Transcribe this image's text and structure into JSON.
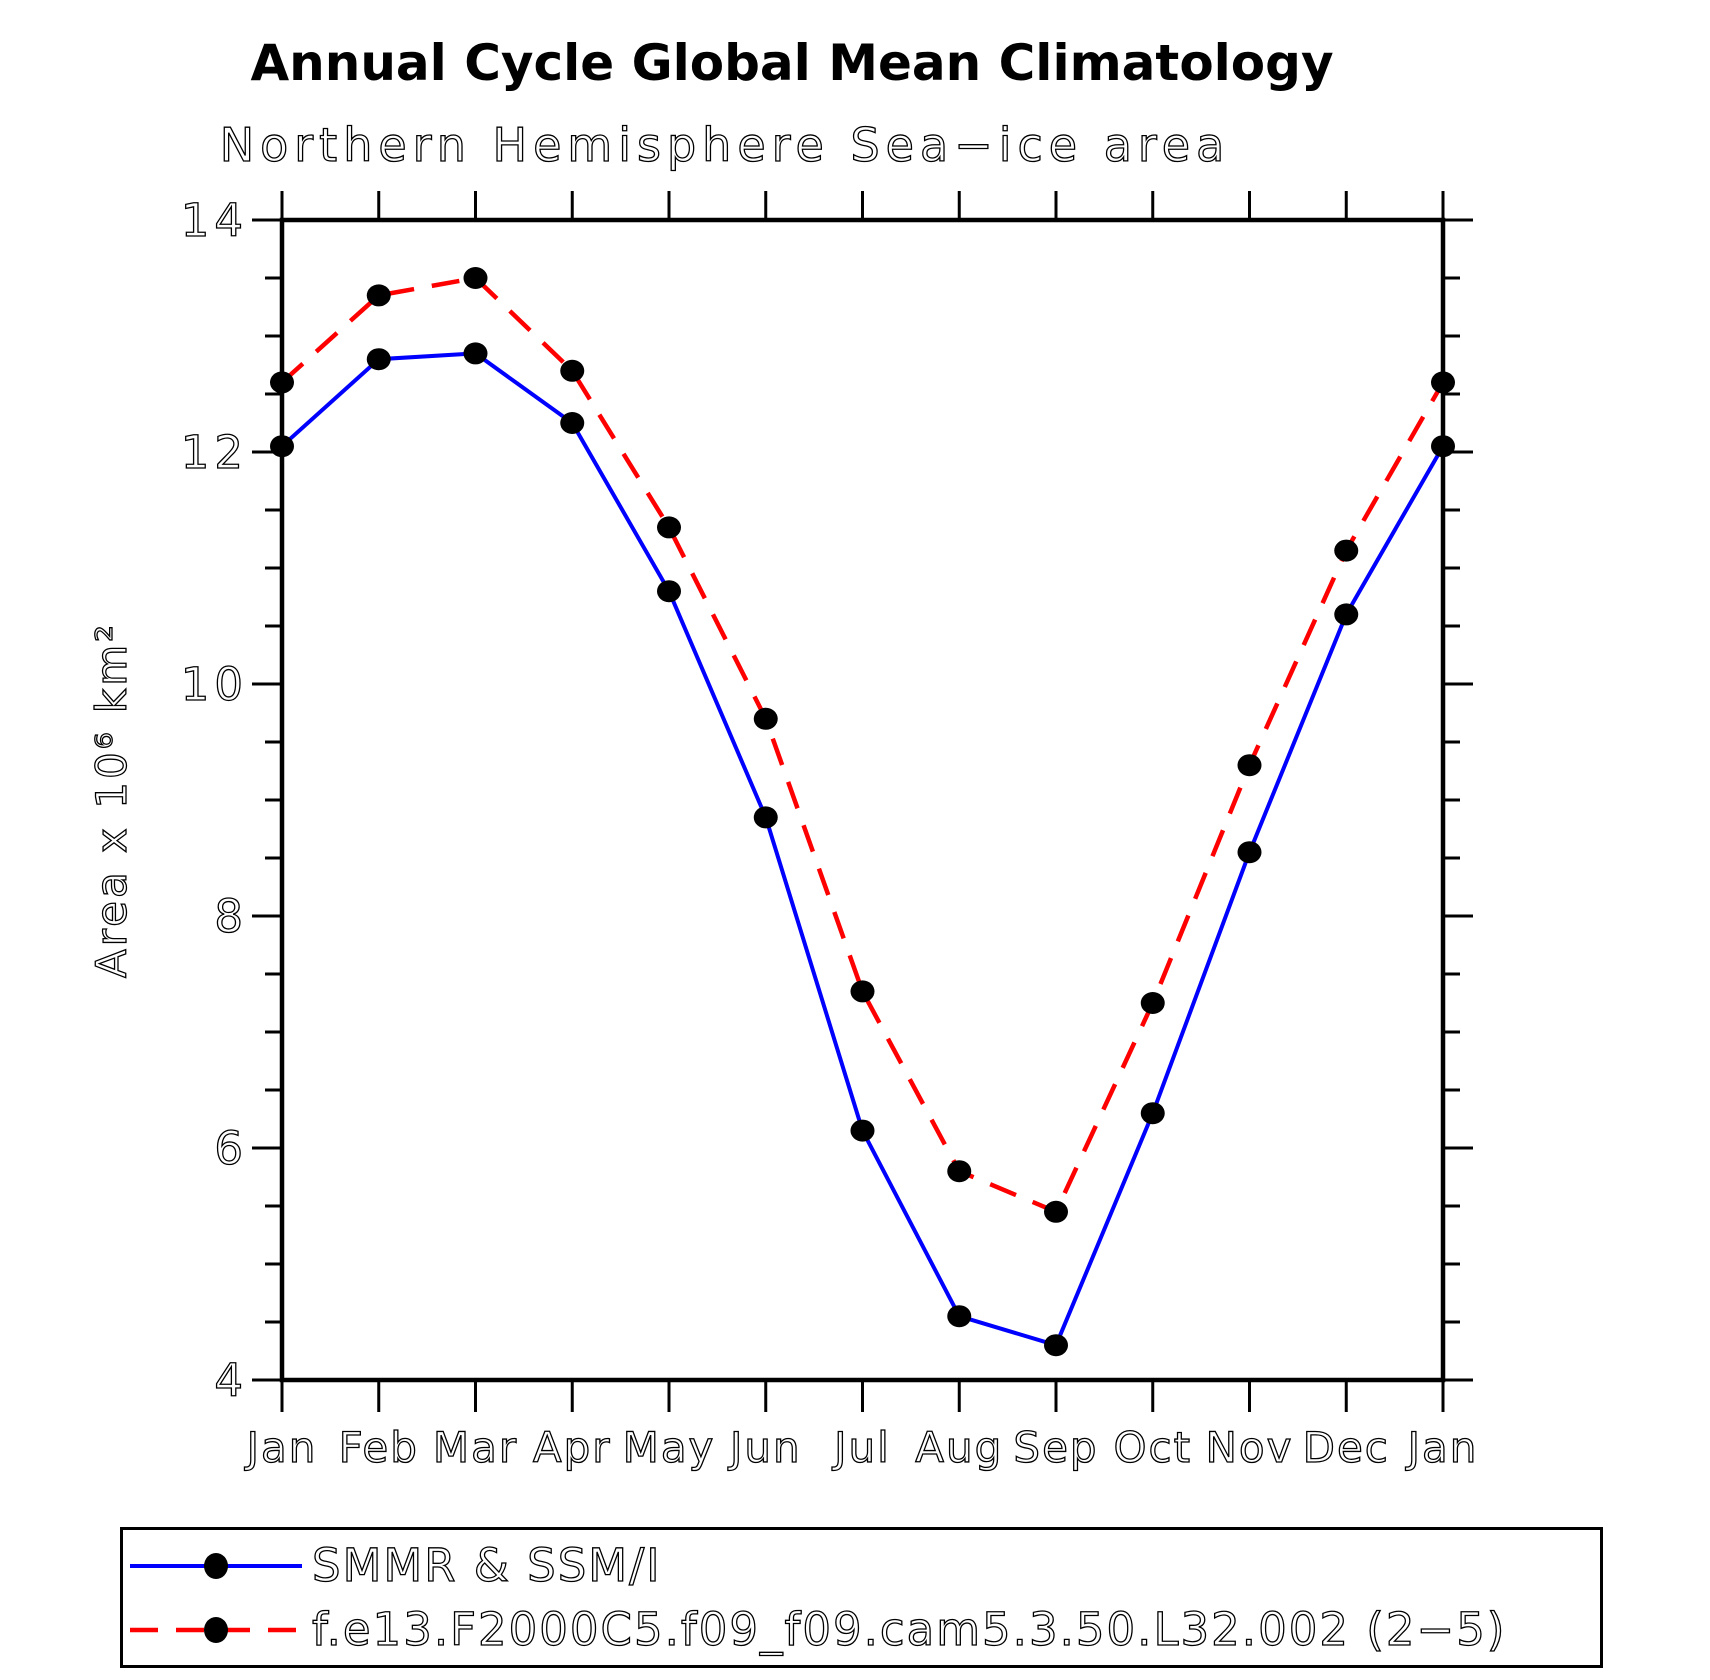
{
  "page": {
    "background": "#ffffff",
    "axis_color": "#000000"
  },
  "chart_data": {
    "type": "line",
    "title": "Annual Cycle Global Mean Climatology",
    "subtitle": "Northern Hemisphere Sea−ice area",
    "ylabel": "Area x 10⁶ km²",
    "xlabel": "",
    "categories": [
      "Jan",
      "Feb",
      "Mar",
      "Apr",
      "May",
      "Jun",
      "Jul",
      "Aug",
      "Sep",
      "Oct",
      "Nov",
      "Dec",
      "Jan"
    ],
    "ylim": [
      4,
      14
    ],
    "ytick_major": [
      14,
      12,
      10,
      8,
      6,
      4
    ],
    "ytick_minor_step": 0.5,
    "grid": false,
    "legend_position": "bottom",
    "marker": {
      "shape": "circle",
      "color": "#000000"
    },
    "series": [
      {
        "name": "SMMR & SSM/I",
        "color": "#0000ff",
        "style": "solid",
        "values": [
          12.05,
          12.8,
          12.85,
          12.25,
          10.8,
          8.85,
          6.15,
          4.55,
          4.3,
          6.3,
          8.55,
          10.6,
          12.05
        ]
      },
      {
        "name": "f.e13.F2000C5.f09_f09.cam5.3.50.L32.002 (2−5)",
        "color": "#ff0000",
        "style": "dashed",
        "values": [
          12.6,
          13.35,
          13.5,
          12.7,
          11.35,
          9.7,
          7.35,
          5.8,
          5.45,
          7.25,
          9.3,
          11.15,
          12.6
        ]
      }
    ]
  }
}
